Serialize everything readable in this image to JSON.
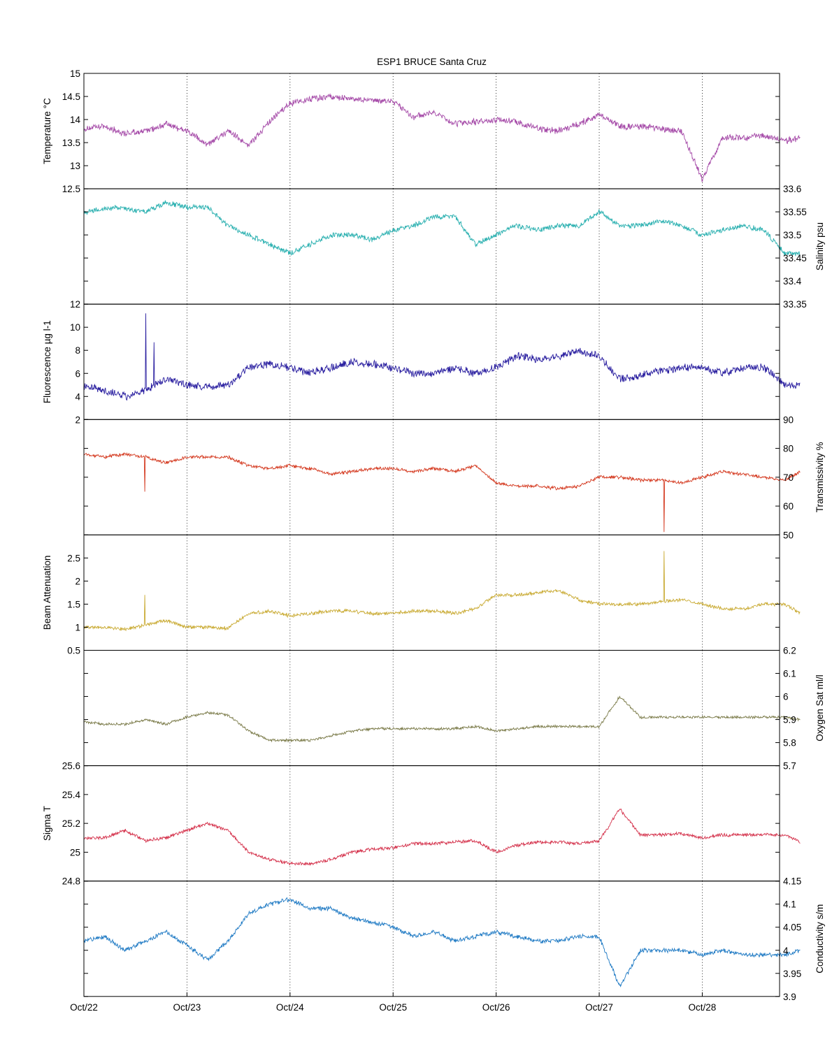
{
  "figure_title": "ESP1 BRUCE Santa Cruz",
  "colors": {
    "axis": "#000000",
    "grid": "#000000",
    "background": "#ffffff"
  },
  "chart_data": [
    {
      "type": "line",
      "name": "temperature",
      "ylabel": "Temperature °C",
      "ylabel_side": "left",
      "ylim": [
        12.5,
        15
      ],
      "yticks": [
        12.5,
        13,
        13.5,
        14,
        14.5,
        15
      ],
      "ytick_labels": [
        "12.5",
        "13",
        "13.5",
        "14",
        "14.5",
        "15"
      ],
      "color": "#a54aa8",
      "series": [
        {
          "x": [
            0,
            0.2,
            0.4,
            0.6,
            0.8,
            1.0,
            1.2,
            1.4,
            1.6,
            1.8,
            2.0,
            2.2,
            2.4,
            2.6,
            2.8,
            3.0,
            3.2,
            3.4,
            3.6,
            3.8,
            4.0,
            4.2,
            4.4,
            4.6,
            4.8,
            5.0,
            5.2,
            5.4,
            5.6,
            5.8,
            6.0,
            6.2,
            6.4,
            6.6,
            6.8,
            6.95
          ],
          "y": [
            13.8,
            13.85,
            13.7,
            13.75,
            13.9,
            13.75,
            13.45,
            13.75,
            13.45,
            13.95,
            14.35,
            14.45,
            14.5,
            14.45,
            14.4,
            14.4,
            14.05,
            14.15,
            13.9,
            13.95,
            14.0,
            13.95,
            13.8,
            13.75,
            13.9,
            14.1,
            13.85,
            13.85,
            13.8,
            13.75,
            12.7,
            13.6,
            13.6,
            13.65,
            13.55,
            13.6
          ],
          "noise": 0.15
        }
      ]
    },
    {
      "type": "line",
      "name": "salinity",
      "ylabel": "Salinity psu",
      "ylabel_side": "right",
      "ylim": [
        33.35,
        33.6
      ],
      "yticks": [
        33.35,
        33.4,
        33.45,
        33.5,
        33.55,
        33.6
      ],
      "ytick_labels": [
        "33.35",
        "33.4",
        "33.45",
        "33.5",
        "33.55",
        "33.6"
      ],
      "color": "#2ab0b0",
      "series": [
        {
          "x": [
            0,
            0.3,
            0.6,
            0.8,
            1.0,
            1.2,
            1.4,
            1.6,
            1.8,
            2.0,
            2.2,
            2.4,
            2.6,
            2.8,
            3.0,
            3.2,
            3.4,
            3.6,
            3.8,
            4.0,
            4.2,
            4.4,
            4.6,
            4.8,
            5.0,
            5.2,
            5.4,
            5.6,
            5.8,
            6.0,
            6.2,
            6.4,
            6.6,
            6.8,
            6.95
          ],
          "y": [
            33.55,
            33.56,
            33.55,
            33.57,
            33.56,
            33.56,
            33.52,
            33.5,
            33.48,
            33.46,
            33.48,
            33.5,
            33.5,
            33.49,
            33.51,
            33.52,
            33.54,
            33.54,
            33.48,
            33.5,
            33.52,
            33.51,
            33.52,
            33.52,
            33.55,
            33.52,
            33.52,
            33.53,
            33.52,
            33.5,
            33.51,
            33.52,
            33.51,
            33.46,
            33.46
          ],
          "noise": 0.012
        }
      ]
    },
    {
      "type": "line",
      "name": "fluorescence",
      "ylabel": "Fluorescence µg l-1",
      "ylabel_side": "left",
      "ylim": [
        2,
        12
      ],
      "yticks": [
        2,
        4,
        6,
        8,
        10,
        12
      ],
      "ytick_labels": [
        "2",
        "4",
        "6",
        "8",
        "10",
        "12"
      ],
      "color": "#2a1fa0",
      "series": [
        {
          "x": [
            0,
            0.2,
            0.4,
            0.6,
            0.8,
            1.0,
            1.2,
            1.4,
            1.6,
            1.8,
            2.0,
            2.2,
            2.4,
            2.6,
            2.8,
            3.0,
            3.2,
            3.4,
            3.6,
            3.8,
            4.0,
            4.2,
            4.4,
            4.6,
            4.8,
            5.0,
            5.2,
            5.4,
            5.6,
            5.8,
            6.0,
            6.2,
            6.4,
            6.6,
            6.8,
            6.95
          ],
          "y": [
            5.0,
            4.5,
            4.0,
            4.5,
            5.5,
            5.0,
            4.8,
            5.0,
            6.5,
            6.8,
            6.5,
            6.0,
            6.5,
            7.0,
            6.8,
            6.5,
            6.0,
            6.0,
            6.5,
            6.0,
            6.5,
            7.5,
            7.2,
            7.5,
            8.0,
            7.5,
            5.5,
            5.8,
            6.2,
            6.5,
            6.5,
            6.0,
            6.5,
            6.5,
            5.0,
            5.0
          ],
          "noise": 0.7,
          "spikes": [
            [
              0.6,
              11.2
            ],
            [
              0.68,
              8.7
            ]
          ]
        }
      ]
    },
    {
      "type": "line",
      "name": "transmissivity",
      "ylabel": "Transmissivity %",
      "ylabel_side": "right",
      "ylim": [
        50,
        90
      ],
      "yticks": [
        50,
        60,
        70,
        80,
        90
      ],
      "ytick_labels": [
        "50",
        "60",
        "70",
        "80",
        "90"
      ],
      "color": "#d4391f",
      "series": [
        {
          "x": [
            0,
            0.2,
            0.4,
            0.6,
            0.8,
            1.0,
            1.2,
            1.4,
            1.6,
            1.8,
            2.0,
            2.2,
            2.4,
            2.6,
            2.8,
            3.0,
            3.2,
            3.4,
            3.6,
            3.8,
            4.0,
            4.2,
            4.4,
            4.6,
            4.8,
            5.0,
            5.2,
            5.4,
            5.6,
            5.8,
            6.0,
            6.2,
            6.4,
            6.6,
            6.8,
            6.95
          ],
          "y": [
            78,
            77,
            78,
            77,
            75,
            77,
            77,
            77,
            74,
            73,
            74,
            73,
            71,
            72,
            73,
            73,
            72,
            73,
            72,
            74,
            68,
            67,
            67,
            66,
            67,
            70,
            70,
            69,
            69,
            68,
            70,
            72,
            71,
            70,
            69,
            72
          ],
          "noise": 1.2,
          "spikes": [
            [
              0.59,
              65
            ],
            [
              5.63,
              51
            ]
          ]
        }
      ]
    },
    {
      "type": "line",
      "name": "beam_attenuation",
      "ylabel": "Beam Attenuation",
      "ylabel_side": "left",
      "ylim": [
        0.5,
        3
      ],
      "yticks": [
        0.5,
        1,
        1.5,
        2,
        2.5,
        3
      ],
      "ytick_labels": [
        "0.5",
        "1",
        "1.5",
        "2",
        "2.5",
        ""
      ],
      "color": "#c9aa32",
      "series": [
        {
          "x": [
            0,
            0.2,
            0.4,
            0.6,
            0.8,
            1.0,
            1.2,
            1.4,
            1.6,
            1.8,
            2.0,
            2.2,
            2.4,
            2.6,
            2.8,
            3.0,
            3.2,
            3.4,
            3.6,
            3.8,
            4.0,
            4.2,
            4.4,
            4.6,
            4.8,
            5.0,
            5.2,
            5.4,
            5.6,
            5.8,
            6.0,
            6.2,
            6.4,
            6.6,
            6.8,
            6.95
          ],
          "y": [
            1.0,
            1.0,
            0.95,
            1.05,
            1.15,
            1.0,
            1.0,
            0.98,
            1.3,
            1.35,
            1.25,
            1.3,
            1.35,
            1.35,
            1.3,
            1.3,
            1.35,
            1.35,
            1.3,
            1.4,
            1.7,
            1.7,
            1.75,
            1.8,
            1.6,
            1.5,
            1.5,
            1.5,
            1.55,
            1.6,
            1.5,
            1.4,
            1.4,
            1.5,
            1.5,
            1.3
          ],
          "noise": 0.08,
          "spikes": [
            [
              0.59,
              1.7
            ],
            [
              5.63,
              2.65
            ]
          ]
        }
      ]
    },
    {
      "type": "line",
      "name": "oxygen_sat",
      "ylabel": "Oxygen Sat ml/l",
      "ylabel_side": "right",
      "ylim": [
        5.7,
        6.2
      ],
      "yticks": [
        5.7,
        5.8,
        5.9,
        6.0,
        6.1,
        6.2
      ],
      "ytick_labels": [
        "5.7",
        "5.8",
        "5.9",
        "6",
        "6.1",
        "6.2"
      ],
      "color": "#7a7a48",
      "series": [
        {
          "x": [
            0,
            0.2,
            0.4,
            0.6,
            0.8,
            1.0,
            1.2,
            1.4,
            1.6,
            1.8,
            2.0,
            2.2,
            2.4,
            2.6,
            2.8,
            3.0,
            3.2,
            3.4,
            3.6,
            3.8,
            4.0,
            4.2,
            4.4,
            4.6,
            4.8,
            5.0,
            5.2,
            5.4,
            5.6,
            5.8,
            6.0,
            6.2,
            6.4,
            6.6,
            6.8,
            6.95
          ],
          "y": [
            5.89,
            5.88,
            5.88,
            5.9,
            5.88,
            5.91,
            5.93,
            5.92,
            5.85,
            5.81,
            5.81,
            5.81,
            5.83,
            5.85,
            5.86,
            5.86,
            5.86,
            5.86,
            5.86,
            5.87,
            5.85,
            5.86,
            5.87,
            5.87,
            5.87,
            5.87,
            6.0,
            5.91,
            5.91,
            5.91,
            5.91,
            5.91,
            5.91,
            5.91,
            5.91,
            5.9
          ],
          "noise": 0.012
        }
      ]
    },
    {
      "type": "line",
      "name": "sigma_t",
      "ylabel": "Sigma T",
      "ylabel_side": "left",
      "ylim": [
        24.8,
        25.6
      ],
      "yticks": [
        24.8,
        25.0,
        25.2,
        25.4,
        25.6
      ],
      "ytick_labels": [
        "24.8",
        "25",
        "25.2",
        "25.4",
        "25.6"
      ],
      "color": "#d4304a",
      "series": [
        {
          "x": [
            0,
            0.2,
            0.4,
            0.6,
            0.8,
            1.0,
            1.2,
            1.4,
            1.6,
            1.8,
            2.0,
            2.2,
            2.4,
            2.6,
            2.8,
            3.0,
            3.2,
            3.4,
            3.6,
            3.8,
            4.0,
            4.2,
            4.4,
            4.6,
            4.8,
            5.0,
            5.2,
            5.4,
            5.6,
            5.8,
            6.0,
            6.2,
            6.4,
            6.6,
            6.8,
            6.95
          ],
          "y": [
            25.1,
            25.1,
            25.15,
            25.08,
            25.1,
            25.15,
            25.2,
            25.15,
            25.0,
            24.95,
            24.92,
            24.92,
            24.95,
            25.0,
            25.02,
            25.03,
            25.06,
            25.06,
            25.07,
            25.08,
            25.0,
            25.05,
            25.07,
            25.07,
            25.06,
            25.08,
            25.3,
            25.12,
            25.12,
            25.13,
            25.1,
            25.12,
            25.12,
            25.12,
            25.12,
            25.07
          ],
          "noise": 0.025
        }
      ]
    },
    {
      "type": "line",
      "name": "conductivity",
      "ylabel": "Conductivity s/m",
      "ylabel_side": "right",
      "ylim": [
        3.9,
        4.15
      ],
      "yticks": [
        3.9,
        3.95,
        4.0,
        4.05,
        4.1,
        4.15
      ],
      "ytick_labels": [
        "3.9",
        "3.95",
        "4",
        "4.05",
        "4.1",
        "4.15"
      ],
      "color": "#1f7ac4",
      "series": [
        {
          "x": [
            0,
            0.2,
            0.4,
            0.6,
            0.8,
            1.0,
            1.2,
            1.4,
            1.6,
            1.8,
            2.0,
            2.2,
            2.4,
            2.6,
            2.8,
            3.0,
            3.2,
            3.4,
            3.6,
            3.8,
            4.0,
            4.2,
            4.4,
            4.6,
            4.8,
            5.0,
            5.2,
            5.4,
            5.6,
            5.8,
            6.0,
            6.2,
            6.4,
            6.6,
            6.8,
            6.95
          ],
          "y": [
            4.02,
            4.03,
            4.0,
            4.02,
            4.04,
            4.01,
            3.98,
            4.02,
            4.08,
            4.1,
            4.11,
            4.09,
            4.09,
            4.07,
            4.06,
            4.05,
            4.03,
            4.04,
            4.02,
            4.03,
            4.04,
            4.03,
            4.02,
            4.02,
            4.03,
            4.03,
            3.92,
            4.0,
            4.0,
            4.0,
            3.99,
            4.0,
            3.99,
            3.99,
            3.99,
            4.0
          ],
          "noise": 0.01
        }
      ]
    }
  ],
  "x_axis": {
    "tick_labels": [
      "Oct/22",
      "Oct/23",
      "Oct/24",
      "Oct/25",
      "Oct/26",
      "Oct/27",
      "Oct/28"
    ],
    "ticks": [
      0,
      1,
      2,
      3,
      4,
      5,
      6
    ],
    "xlim": [
      0,
      6.75
    ],
    "grid": "vertical dotted at each day"
  }
}
